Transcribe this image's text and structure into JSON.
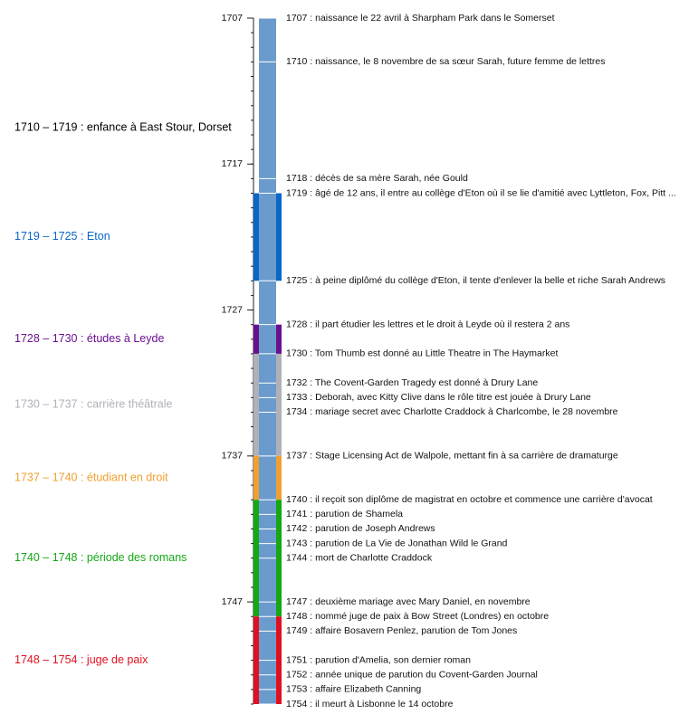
{
  "chart_data": {
    "type": "timeline",
    "ylim": [
      1707,
      1754
    ],
    "yticks": [
      1707,
      1717,
      1727,
      1737,
      1747
    ],
    "minor_yticks": [
      1707,
      1708,
      1709,
      1710,
      1711,
      1712,
      1713,
      1714,
      1715,
      1716,
      1717,
      1718,
      1719,
      1720,
      1721,
      1722,
      1723,
      1724,
      1725,
      1726,
      1727,
      1728,
      1729,
      1730,
      1731,
      1732,
      1733,
      1734,
      1735,
      1736,
      1737,
      1738,
      1739,
      1740,
      1741,
      1742,
      1743,
      1744,
      1745,
      1746,
      1747,
      1748,
      1749,
      1750,
      1751,
      1752,
      1753,
      1754
    ],
    "bar_color": "#6b9bcc",
    "periods": [
      {
        "start": 1710,
        "end": 1719,
        "label": "1710 – 1719 : enfance à East Stour, Dorset",
        "color": "#000000",
        "show_bar": false
      },
      {
        "start": 1719,
        "end": 1725,
        "label": "1719 – 1725 : Eton",
        "color": "#0a66c8",
        "show_bar": true
      },
      {
        "start": 1728,
        "end": 1730,
        "label": "1728 – 1730 : études à Leyde",
        "color": "#6a0f8e",
        "show_bar": true
      },
      {
        "start": 1730,
        "end": 1737,
        "label": "1730 – 1737 : carrière théâtrale",
        "color": "#b0b0b8",
        "show_bar": true
      },
      {
        "start": 1737,
        "end": 1740,
        "label": "1737 – 1740 : étudiant en droit",
        "color": "#f0a030",
        "show_bar": true
      },
      {
        "start": 1740,
        "end": 1748,
        "label": "1740 – 1748 : période des romans",
        "color": "#14a814",
        "show_bar": true
      },
      {
        "start": 1748,
        "end": 1754,
        "label": "1748 – 1754 : juge de paix",
        "color": "#e01020",
        "show_bar": true
      }
    ],
    "events": [
      {
        "year": 1707,
        "label": "1707 : naissance le 22 avril à Sharpham Park dans le Somerset"
      },
      {
        "year": 1710,
        "label": "1710 : naissance, le 8 novembre de sa sœur Sarah, future femme de lettres"
      },
      {
        "year": 1718,
        "label": "1718 : décès de sa mère Sarah, née Gould"
      },
      {
        "year": 1719,
        "label": "1719 : âgé de 12 ans, il entre au collège d'Eton où il se lie d'amitié avec Lyttleton, Fox, Pitt ..."
      },
      {
        "year": 1725,
        "label": "1725 : à peine diplômé du collège d'Eton, il tente d'enlever la belle et riche Sarah Andrews"
      },
      {
        "year": 1728,
        "label": "1728 : il part étudier les lettres et le droit à Leyde où il restera 2 ans"
      },
      {
        "year": 1730,
        "label": "1730 : Tom Thumb est donné au Little Theatre in The Haymarket"
      },
      {
        "year": 1732,
        "label": "1732 : The Covent-Garden Tragedy est donné à Drury Lane"
      },
      {
        "year": 1733,
        "label": "1733 : Deborah, avec Kitty Clive dans le rôle titre est jouée à Drury Lane"
      },
      {
        "year": 1734,
        "label": "1734 : mariage secret avec Charlotte Craddock à Charlcombe, le 28 novembre"
      },
      {
        "year": 1737,
        "label": "1737 : Stage Licensing Act de Walpole, mettant fin à sa carrière de dramaturge"
      },
      {
        "year": 1740,
        "label": "1740 : il reçoit son diplôme de magistrat en octobre et commence une carrière d'avocat"
      },
      {
        "year": 1741,
        "label": "1741 : parution de Shamela"
      },
      {
        "year": 1742,
        "label": "1742 : parution de Joseph Andrews"
      },
      {
        "year": 1743,
        "label": "1743 : parution de La Vie de Jonathan Wild le Grand"
      },
      {
        "year": 1744,
        "label": "1744 : mort de Charlotte Craddock"
      },
      {
        "year": 1747,
        "label": "1747 : deuxième mariage avec Mary Daniel, en novembre"
      },
      {
        "year": 1748,
        "label": "1748 : nommé juge de paix à Bow Street (Londres) en octobre"
      },
      {
        "year": 1749,
        "label": "1749 : affaire Bosavern Penlez, parution de Tom Jones"
      },
      {
        "year": 1751,
        "label": "1751 : parution d'Amelia, son dernier roman"
      },
      {
        "year": 1752,
        "label": "1752 : année unique de parution du Covent-Garden Journal"
      },
      {
        "year": 1753,
        "label": "1753 : affaire Elizabeth Canning"
      },
      {
        "year": 1754,
        "label": "1754 : il meurt à Lisbonne le 14 octobre"
      }
    ]
  }
}
